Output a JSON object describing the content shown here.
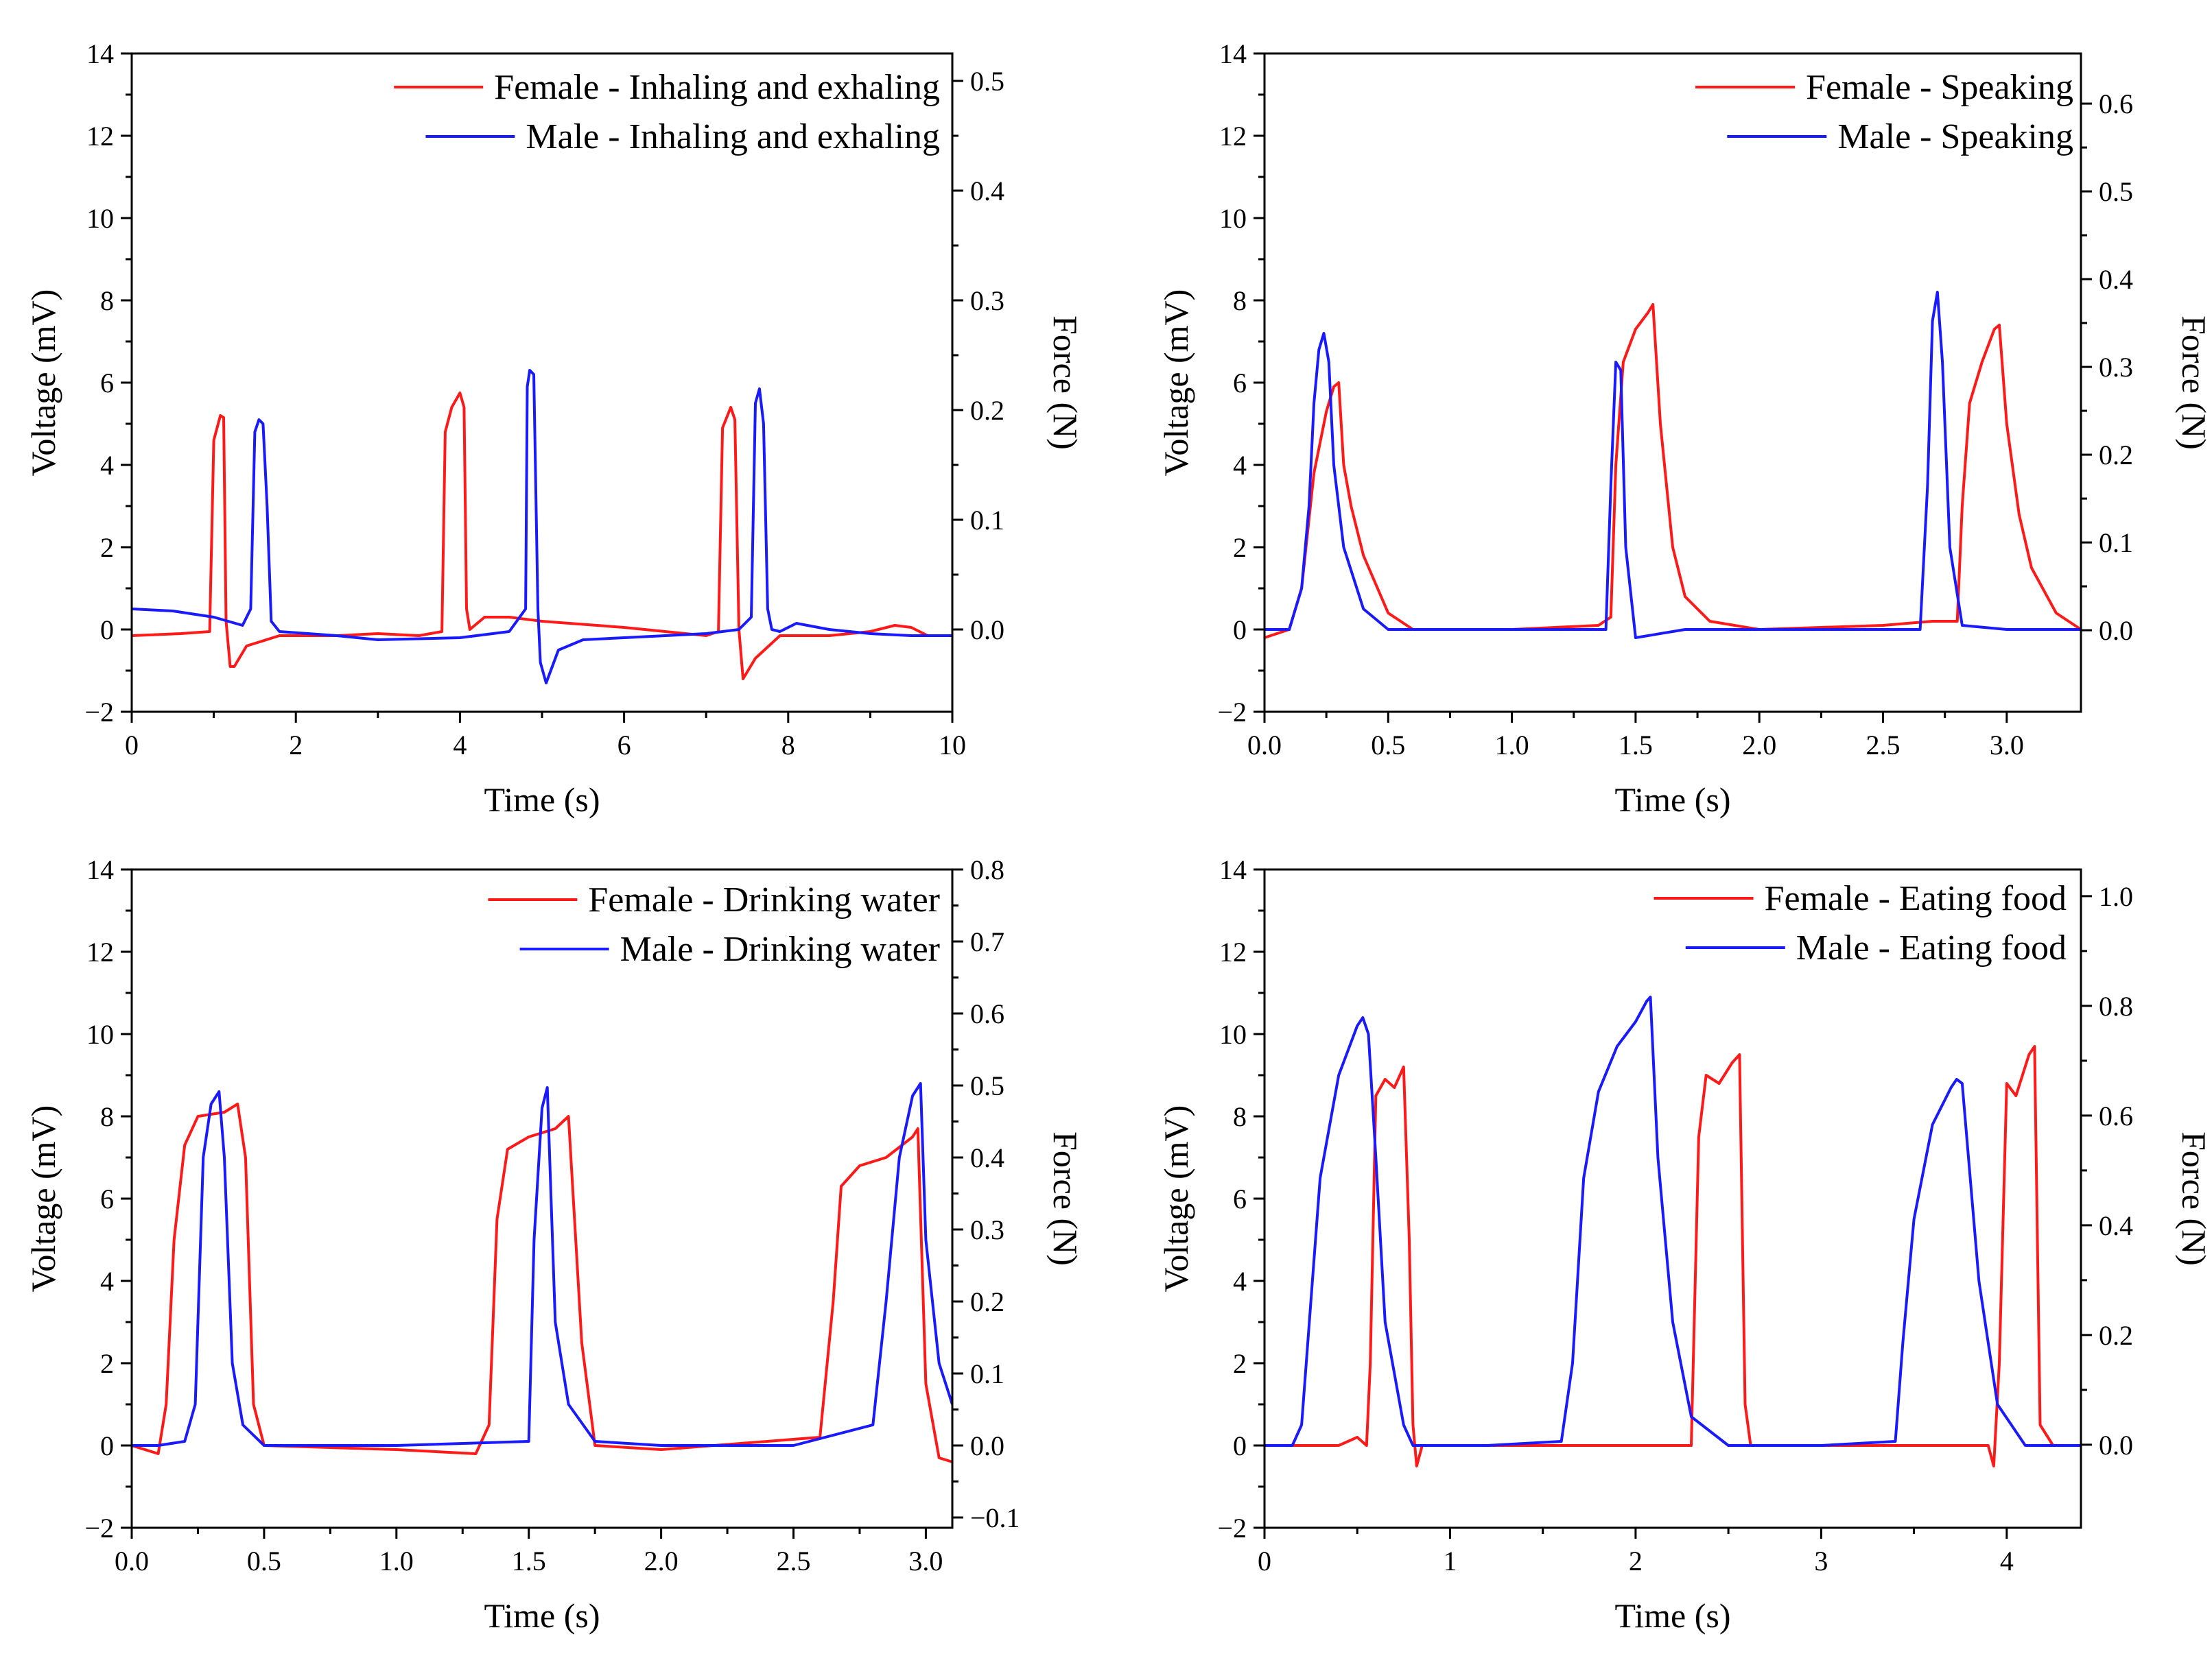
{
  "colors": {
    "female": "#ff1a1a",
    "male": "#1a1aff",
    "axis": "#000000"
  },
  "chart_data": [
    {
      "type": "line",
      "id": "inhaling",
      "xlabel": "Time (s)",
      "ylabel": "Voltage (mV)",
      "y2label": "Force (N)",
      "xlim": [
        0,
        10
      ],
      "ylim": [
        -2,
        14
      ],
      "y2lim": [
        -0.075,
        0.525
      ],
      "xticks": [
        0,
        2,
        4,
        6,
        8,
        10
      ],
      "xtick_labels": [
        "0",
        "2",
        "4",
        "6",
        "8",
        "10"
      ],
      "yticks": [
        -2,
        0,
        2,
        4,
        6,
        8,
        10,
        12,
        14
      ],
      "ytick_labels": [
        "−2",
        "0",
        "2",
        "4",
        "6",
        "8",
        "10",
        "12",
        "14"
      ],
      "y2ticks": [
        0.0,
        0.1,
        0.2,
        0.3,
        0.4,
        0.5
      ],
      "y2tick_labels": [
        "0.0",
        "0.1",
        "0.2",
        "0.3",
        "0.4",
        "0.5"
      ],
      "series": [
        {
          "name": "Female - Inhaling and exhaling",
          "color": "female",
          "x": [
            0,
            0.6,
            0.95,
            1.0,
            1.08,
            1.12,
            1.15,
            1.2,
            1.25,
            1.4,
            1.8,
            2.5,
            3.0,
            3.5,
            3.78,
            3.82,
            3.9,
            4.0,
            4.05,
            4.08,
            4.12,
            4.3,
            4.6,
            5.0,
            6.0,
            7.0,
            7.15,
            7.2,
            7.3,
            7.35,
            7.4,
            7.45,
            7.6,
            7.9,
            8.5,
            9.0,
            9.3,
            9.5,
            9.7,
            10.0
          ],
          "y": [
            -0.15,
            -0.1,
            -0.05,
            4.6,
            5.2,
            5.15,
            0.2,
            -0.9,
            -0.9,
            -0.4,
            -0.15,
            -0.15,
            -0.1,
            -0.15,
            -0.05,
            4.8,
            5.4,
            5.75,
            5.4,
            0.5,
            0.0,
            0.3,
            0.3,
            0.2,
            0.05,
            -0.15,
            -0.05,
            4.9,
            5.4,
            5.1,
            0.0,
            -1.2,
            -0.7,
            -0.15,
            -0.15,
            -0.05,
            0.1,
            0.05,
            -0.15,
            -0.15
          ]
        },
        {
          "name": "Male - Inhaling and exhaling",
          "color": "male",
          "x": [
            0,
            0.5,
            1.0,
            1.35,
            1.45,
            1.5,
            1.55,
            1.6,
            1.65,
            1.7,
            1.8,
            2.5,
            3.0,
            4.0,
            4.6,
            4.8,
            4.82,
            4.85,
            4.9,
            4.95,
            4.98,
            5.05,
            5.2,
            5.5,
            6.0,
            7.0,
            7.4,
            7.55,
            7.6,
            7.65,
            7.7,
            7.75,
            7.8,
            7.9,
            8.1,
            8.5,
            9.0,
            9.5,
            10.0
          ],
          "y": [
            0.5,
            0.45,
            0.3,
            0.1,
            0.5,
            4.8,
            5.1,
            5.0,
            3.0,
            0.2,
            -0.05,
            -0.15,
            -0.25,
            -0.2,
            -0.05,
            0.5,
            5.9,
            6.3,
            6.2,
            0.5,
            -0.8,
            -1.3,
            -0.5,
            -0.25,
            -0.2,
            -0.1,
            0.0,
            0.3,
            5.5,
            5.85,
            5.0,
            0.5,
            0.0,
            -0.05,
            0.15,
            0.0,
            -0.1,
            -0.15,
            -0.15
          ]
        }
      ],
      "legend": "top-right"
    },
    {
      "type": "line",
      "id": "speaking",
      "xlabel": "Time (s)",
      "ylabel": "Voltage (mV)",
      "y2label": "Force (N)",
      "xlim": [
        0,
        3.3
      ],
      "ylim": [
        -2,
        14
      ],
      "y2lim": [
        -0.0929,
        0.6571
      ],
      "xticks": [
        0.0,
        0.5,
        1.0,
        1.5,
        2.0,
        2.5,
        3.0
      ],
      "xtick_labels": [
        "0.0",
        "0.5",
        "1.0",
        "1.5",
        "2.0",
        "2.5",
        "3.0"
      ],
      "yticks": [
        -2,
        0,
        2,
        4,
        6,
        8,
        10,
        12,
        14
      ],
      "ytick_labels": [
        "−2",
        "0",
        "2",
        "4",
        "6",
        "8",
        "10",
        "12",
        "14"
      ],
      "y2ticks": [
        0.0,
        0.1,
        0.2,
        0.3,
        0.4,
        0.5,
        0.6
      ],
      "y2tick_labels": [
        "0.0",
        "0.1",
        "0.2",
        "0.3",
        "0.4",
        "0.5",
        "0.6"
      ],
      "series": [
        {
          "name": "Female - Speaking",
          "color": "female",
          "x": [
            0,
            0.1,
            0.15,
            0.2,
            0.25,
            0.28,
            0.3,
            0.32,
            0.35,
            0.4,
            0.5,
            0.6,
            1.0,
            1.35,
            1.4,
            1.42,
            1.45,
            1.5,
            1.55,
            1.57,
            1.6,
            1.65,
            1.7,
            1.8,
            2.0,
            2.5,
            2.7,
            2.8,
            2.82,
            2.85,
            2.9,
            2.95,
            2.97,
            3.0,
            3.05,
            3.1,
            3.2,
            3.3
          ],
          "y": [
            -0.2,
            0.0,
            1.0,
            3.8,
            5.3,
            5.9,
            6.0,
            4.0,
            3.0,
            1.8,
            0.4,
            0.0,
            0.0,
            0.1,
            0.3,
            4.0,
            6.5,
            7.3,
            7.7,
            7.9,
            5.0,
            2.0,
            0.8,
            0.2,
            0.0,
            0.1,
            0.2,
            0.2,
            3.0,
            5.5,
            6.5,
            7.3,
            7.4,
            5.0,
            2.8,
            1.5,
            0.4,
            0.0
          ]
        },
        {
          "name": "Male - Speaking",
          "color": "male",
          "x": [
            0,
            0.1,
            0.15,
            0.18,
            0.2,
            0.22,
            0.24,
            0.26,
            0.28,
            0.32,
            0.4,
            0.5,
            1.0,
            1.38,
            1.4,
            1.42,
            1.44,
            1.46,
            1.5,
            1.7,
            2.0,
            2.65,
            2.68,
            2.7,
            2.72,
            2.74,
            2.77,
            2.82,
            3.0,
            3.3
          ],
          "y": [
            0.0,
            0.0,
            1.0,
            3.0,
            5.5,
            6.8,
            7.2,
            6.5,
            4.0,
            2.0,
            0.5,
            0.0,
            0.0,
            0.0,
            3.5,
            6.5,
            6.3,
            2.0,
            -0.2,
            0.0,
            0.0,
            0.0,
            3.5,
            7.5,
            8.2,
            6.5,
            2.0,
            0.1,
            0.0,
            0.0
          ]
        }
      ],
      "legend": "top-right"
    },
    {
      "type": "line",
      "id": "drinking",
      "xlabel": "Time (s)",
      "ylabel": "Voltage (mV)",
      "y2label": "Force (N)",
      "xlim": [
        0,
        3.1
      ],
      "ylim": [
        -2,
        14
      ],
      "y2lim": [
        -0.1143,
        0.8
      ],
      "xticks": [
        0.0,
        0.5,
        1.0,
        1.5,
        2.0,
        2.5,
        3.0
      ],
      "xtick_labels": [
        "0.0",
        "0.5",
        "1.0",
        "1.5",
        "2.0",
        "2.5",
        "3.0"
      ],
      "yticks": [
        -2,
        0,
        2,
        4,
        6,
        8,
        10,
        12,
        14
      ],
      "ytick_labels": [
        "−2",
        "0",
        "2",
        "4",
        "6",
        "8",
        "10",
        "12",
        "14"
      ],
      "y2ticks": [
        -0.1,
        0.0,
        0.1,
        0.2,
        0.3,
        0.4,
        0.5,
        0.6,
        0.7,
        0.8
      ],
      "y2tick_labels": [
        "−0.1",
        "0.0",
        "0.1",
        "0.2",
        "0.3",
        "0.4",
        "0.5",
        "0.6",
        "0.7",
        "0.8"
      ],
      "series": [
        {
          "name": "Female - Drinking water",
          "color": "female",
          "x": [
            0,
            0.1,
            0.13,
            0.16,
            0.2,
            0.25,
            0.3,
            0.35,
            0.4,
            0.43,
            0.46,
            0.5,
            1.0,
            1.3,
            1.35,
            1.38,
            1.42,
            1.5,
            1.6,
            1.65,
            1.7,
            1.75,
            2.0,
            2.6,
            2.65,
            2.68,
            2.75,
            2.85,
            2.95,
            2.97,
            3.0,
            3.05,
            3.1
          ],
          "y": [
            0.0,
            -0.2,
            1.0,
            5.0,
            7.3,
            8.0,
            8.05,
            8.1,
            8.3,
            7.0,
            1.0,
            0.0,
            -0.1,
            -0.2,
            0.5,
            5.5,
            7.2,
            7.5,
            7.7,
            8.0,
            2.5,
            0.0,
            -0.1,
            0.2,
            3.5,
            6.3,
            6.8,
            7.0,
            7.5,
            7.7,
            1.5,
            -0.3,
            -0.4
          ]
        },
        {
          "name": "Male - Drinking water",
          "color": "male",
          "x": [
            0,
            0.1,
            0.2,
            0.24,
            0.27,
            0.3,
            0.33,
            0.35,
            0.38,
            0.42,
            0.5,
            1.0,
            1.5,
            1.52,
            1.55,
            1.57,
            1.6,
            1.65,
            1.75,
            2.0,
            2.5,
            2.8,
            2.85,
            2.9,
            2.95,
            2.98,
            3.0,
            3.05,
            3.1
          ],
          "y": [
            0.0,
            0.0,
            0.1,
            1.0,
            7.0,
            8.3,
            8.6,
            7.0,
            2.0,
            0.5,
            0.0,
            0.0,
            0.1,
            5.0,
            8.2,
            8.7,
            3.0,
            1.0,
            0.1,
            0.0,
            0.0,
            0.5,
            3.5,
            7.0,
            8.5,
            8.8,
            5.0,
            2.0,
            1.0
          ]
        }
      ],
      "legend": "top-right"
    },
    {
      "type": "line",
      "id": "eating",
      "xlabel": "Time (s)",
      "ylabel": "Voltage (mV)",
      "y2label": "Force (N)",
      "xlim": [
        0,
        4.4
      ],
      "ylim": [
        -2,
        14
      ],
      "y2lim": [
        -0.1514,
        1.0486
      ],
      "xticks": [
        0,
        1,
        2,
        3,
        4
      ],
      "xtick_labels": [
        "0",
        "1",
        "2",
        "3",
        "4"
      ],
      "yticks": [
        -2,
        0,
        2,
        4,
        6,
        8,
        10,
        12,
        14
      ],
      "ytick_labels": [
        "−2",
        "0",
        "2",
        "4",
        "6",
        "8",
        "10",
        "12",
        "14"
      ],
      "y2ticks": [
        0.0,
        0.2,
        0.4,
        0.6,
        0.8,
        1.0
      ],
      "y2tick_labels": [
        "0.0",
        "0.2",
        "0.4",
        "0.6",
        "0.8",
        "1.0"
      ],
      "series": [
        {
          "name": "Female - Eating food",
          "color": "female",
          "x": [
            0,
            0.4,
            0.5,
            0.55,
            0.57,
            0.6,
            0.65,
            0.7,
            0.75,
            0.78,
            0.8,
            0.82,
            0.85,
            1.2,
            1.8,
            2.3,
            2.34,
            2.38,
            2.45,
            2.52,
            2.56,
            2.59,
            2.62,
            3.0,
            3.5,
            3.9,
            3.93,
            3.96,
            4.0,
            4.05,
            4.12,
            4.15,
            4.18,
            4.25,
            4.4
          ],
          "y": [
            0.0,
            0.0,
            0.2,
            0.0,
            2.0,
            8.5,
            8.9,
            8.7,
            9.2,
            5.0,
            0.5,
            -0.5,
            0.0,
            0.0,
            0.0,
            0.0,
            7.5,
            9.0,
            8.8,
            9.3,
            9.5,
            1.0,
            0.0,
            0.0,
            0.0,
            0.0,
            -0.5,
            2.0,
            8.8,
            8.5,
            9.5,
            9.7,
            0.5,
            0.0,
            0.0
          ]
        },
        {
          "name": "Male - Eating food",
          "color": "male",
          "x": [
            0,
            0.15,
            0.2,
            0.25,
            0.3,
            0.4,
            0.5,
            0.53,
            0.56,
            0.6,
            0.65,
            0.75,
            0.8,
            1.2,
            1.6,
            1.66,
            1.72,
            1.8,
            1.9,
            2.0,
            2.06,
            2.08,
            2.12,
            2.2,
            2.3,
            2.5,
            3.0,
            3.4,
            3.44,
            3.5,
            3.6,
            3.7,
            3.73,
            3.76,
            3.85,
            3.95,
            4.1,
            4.4
          ],
          "y": [
            0.0,
            0.0,
            0.5,
            3.5,
            6.5,
            9.0,
            10.2,
            10.4,
            10.0,
            7.0,
            3.0,
            0.5,
            0.0,
            0.0,
            0.1,
            2.0,
            6.5,
            8.6,
            9.7,
            10.3,
            10.8,
            10.9,
            7.0,
            3.0,
            0.7,
            0.0,
            0.0,
            0.1,
            2.5,
            5.5,
            7.8,
            8.7,
            8.9,
            8.8,
            4.0,
            1.0,
            0.0,
            0.0
          ]
        }
      ],
      "legend": "top-right"
    }
  ]
}
